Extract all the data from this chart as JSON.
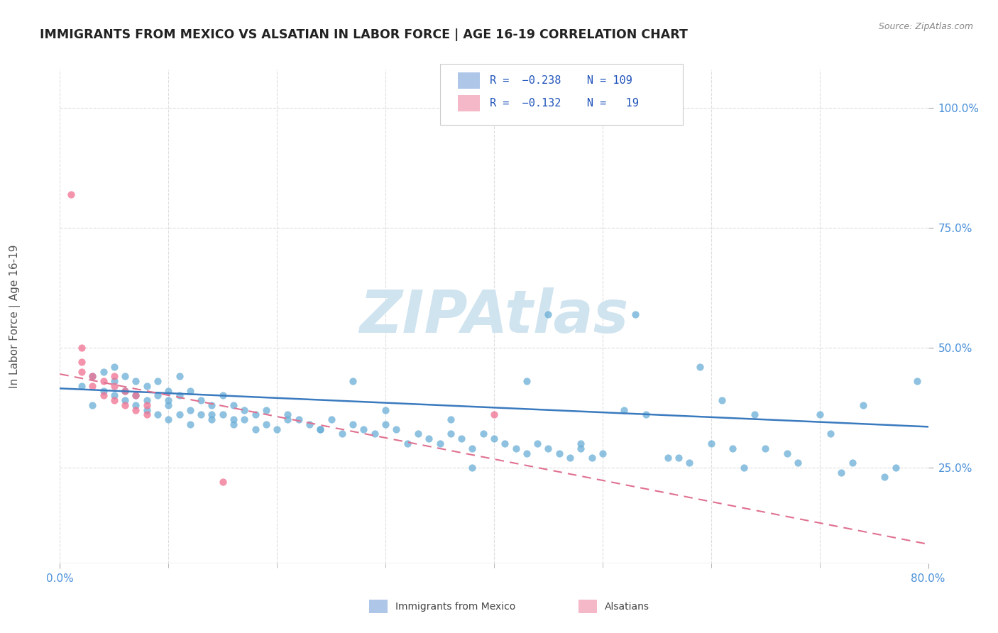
{
  "title": "IMMIGRANTS FROM MEXICO VS ALSATIAN IN LABOR FORCE | AGE 16-19 CORRELATION CHART",
  "source_text": "Source: ZipAtlas.com",
  "ylabel": "In Labor Force | Age 16-19",
  "xlim": [
    0.0,
    0.8
  ],
  "ylim": [
    0.05,
    1.08
  ],
  "ytick_values": [
    0.25,
    0.5,
    0.75,
    1.0
  ],
  "legend_color1": "#aec6e8",
  "legend_color2": "#f4b8c8",
  "color_blue": "#6aaed6",
  "color_pink": "#f07090",
  "trendline_color_blue": "#3a7abf",
  "trendline_color_pink": "#e07090",
  "watermark": "ZIPAtlas",
  "watermark_color": "#d0e4f0",
  "background_color": "#ffffff",
  "grid_color": "#dddddd",
  "title_color": "#222222",
  "axis_label_color": "#555555",
  "tick_label_color": "#4a90d9",
  "blue_scatter_x": [
    0.02,
    0.03,
    0.03,
    0.04,
    0.04,
    0.05,
    0.05,
    0.05,
    0.06,
    0.06,
    0.06,
    0.07,
    0.07,
    0.07,
    0.08,
    0.08,
    0.08,
    0.09,
    0.09,
    0.09,
    0.1,
    0.1,
    0.1,
    0.11,
    0.11,
    0.11,
    0.12,
    0.12,
    0.13,
    0.13,
    0.14,
    0.14,
    0.15,
    0.15,
    0.16,
    0.16,
    0.17,
    0.17,
    0.18,
    0.19,
    0.19,
    0.2,
    0.21,
    0.22,
    0.23,
    0.24,
    0.25,
    0.26,
    0.27,
    0.28,
    0.29,
    0.3,
    0.31,
    0.32,
    0.33,
    0.34,
    0.35,
    0.36,
    0.37,
    0.38,
    0.39,
    0.4,
    0.41,
    0.42,
    0.43,
    0.44,
    0.45,
    0.46,
    0.47,
    0.48,
    0.49,
    0.5,
    0.52,
    0.54,
    0.56,
    0.58,
    0.6,
    0.62,
    0.63,
    0.65,
    0.68,
    0.7,
    0.72,
    0.74,
    0.76,
    0.57,
    0.59,
    0.43,
    0.45,
    0.53,
    0.61,
    0.64,
    0.67,
    0.71,
    0.73,
    0.77,
    0.79,
    0.48,
    0.38,
    0.36,
    0.3,
    0.27,
    0.24,
    0.21,
    0.18,
    0.16,
    0.14,
    0.12,
    0.1
  ],
  "blue_scatter_y": [
    0.42,
    0.38,
    0.44,
    0.41,
    0.45,
    0.4,
    0.43,
    0.46,
    0.39,
    0.41,
    0.44,
    0.38,
    0.4,
    0.43,
    0.37,
    0.39,
    0.42,
    0.36,
    0.4,
    0.43,
    0.35,
    0.39,
    0.41,
    0.36,
    0.4,
    0.44,
    0.37,
    0.41,
    0.36,
    0.39,
    0.35,
    0.38,
    0.36,
    0.4,
    0.34,
    0.38,
    0.35,
    0.37,
    0.36,
    0.34,
    0.37,
    0.33,
    0.36,
    0.35,
    0.34,
    0.33,
    0.35,
    0.32,
    0.34,
    0.33,
    0.32,
    0.34,
    0.33,
    0.3,
    0.32,
    0.31,
    0.3,
    0.32,
    0.31,
    0.29,
    0.32,
    0.31,
    0.3,
    0.29,
    0.28,
    0.3,
    0.29,
    0.28,
    0.27,
    0.29,
    0.27,
    0.28,
    0.37,
    0.36,
    0.27,
    0.26,
    0.3,
    0.29,
    0.25,
    0.29,
    0.26,
    0.36,
    0.24,
    0.38,
    0.23,
    0.27,
    0.46,
    0.43,
    0.57,
    0.57,
    0.39,
    0.36,
    0.28,
    0.32,
    0.26,
    0.25,
    0.43,
    0.3,
    0.25,
    0.35,
    0.37,
    0.43,
    0.33,
    0.35,
    0.33,
    0.35,
    0.36,
    0.34,
    0.38
  ],
  "pink_scatter_x": [
    0.01,
    0.02,
    0.02,
    0.02,
    0.03,
    0.03,
    0.04,
    0.04,
    0.05,
    0.05,
    0.05,
    0.06,
    0.06,
    0.07,
    0.07,
    0.08,
    0.08,
    0.15,
    0.4
  ],
  "pink_scatter_y": [
    0.82,
    0.45,
    0.47,
    0.5,
    0.42,
    0.44,
    0.4,
    0.43,
    0.39,
    0.42,
    0.44,
    0.38,
    0.41,
    0.37,
    0.4,
    0.36,
    0.38,
    0.22,
    0.36
  ],
  "blue_trend_x": [
    0.0,
    0.8
  ],
  "blue_trend_y": [
    0.415,
    0.335
  ],
  "pink_trend_x": [
    0.0,
    0.8
  ],
  "pink_trend_y": [
    0.445,
    0.09
  ]
}
